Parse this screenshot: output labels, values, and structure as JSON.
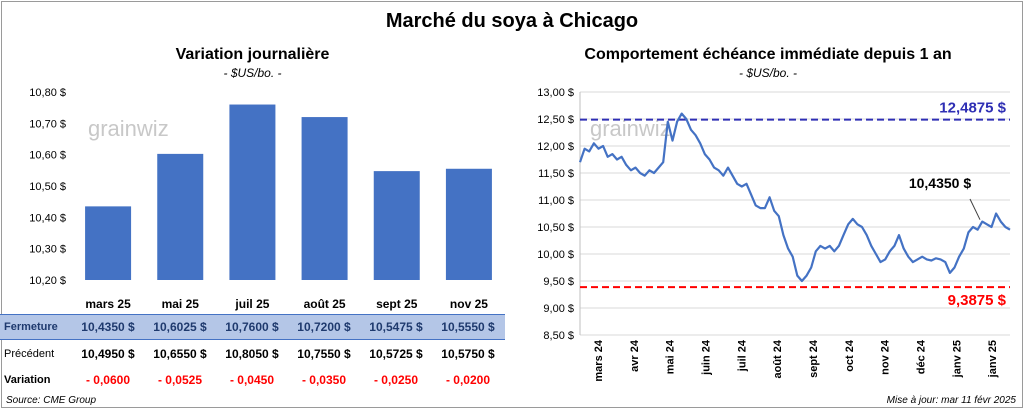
{
  "title": "Marché du soya à Chicago",
  "left": {
    "title": "Variation journalière",
    "subtitle": "- $US/bo. -",
    "watermark": "grainwiz",
    "chart_data": {
      "type": "bar",
      "categories": [
        "mars 25",
        "mai 25",
        "juil 25",
        "août 25",
        "sept 25",
        "nov 25"
      ],
      "values": [
        10.435,
        10.6025,
        10.76,
        10.72,
        10.5475,
        10.555
      ],
      "ylim": [
        10.2,
        10.8
      ],
      "yticks": [
        "10,20 $",
        "10,30 $",
        "10,40 $",
        "10,50 $",
        "10,60 $",
        "10,70 $",
        "10,80 $"
      ],
      "bar_color": "#4472c4",
      "grid": false
    }
  },
  "table": {
    "rows": [
      {
        "label": "Fermeture",
        "values": [
          "10,4350 $",
          "10,6025 $",
          "10,7600 $",
          "10,7200 $",
          "10,5475 $",
          "10,5550 $"
        ]
      },
      {
        "label": "Précédent",
        "values": [
          "10,4950 $",
          "10,6550 $",
          "10,8050 $",
          "10,7550 $",
          "10,5725 $",
          "10,5750 $"
        ]
      },
      {
        "label": "Variation",
        "values": [
          "- 0,0600",
          "- 0,0525",
          "- 0,0450",
          "- 0,0350",
          "- 0,0250",
          "- 0,0200"
        ]
      }
    ]
  },
  "right": {
    "title": "Comportement échéance immédiate depuis 1 an",
    "subtitle": "- $US/bo. -",
    "watermark": "grainwiz",
    "chart_data": {
      "type": "line",
      "ylim": [
        8.5,
        13.0
      ],
      "yticks": [
        "8,50 $",
        "9,00 $",
        "9,50 $",
        "10,00 $",
        "10,50 $",
        "11,00 $",
        "11,50 $",
        "12,00 $",
        "12,50 $",
        "13,00 $"
      ],
      "xticks": [
        "mars 24",
        "avr 24",
        "mai 24",
        "juin 24",
        "juil 24",
        "août 24",
        "sept 24",
        "oct 24",
        "nov 24",
        "déc 24",
        "janv 25",
        "janv 25"
      ],
      "series": [
        {
          "color": "#4472c4",
          "values": [
            11.7,
            11.95,
            11.9,
            12.05,
            11.95,
            12.0,
            11.8,
            11.85,
            11.75,
            11.8,
            11.65,
            11.55,
            11.6,
            11.5,
            11.45,
            11.55,
            11.5,
            11.6,
            11.7,
            12.45,
            12.1,
            12.45,
            12.6,
            12.5,
            12.3,
            12.2,
            12.05,
            11.85,
            11.75,
            11.6,
            11.55,
            11.45,
            11.6,
            11.45,
            11.3,
            11.25,
            11.3,
            11.1,
            10.9,
            10.85,
            10.85,
            11.05,
            10.8,
            10.7,
            10.35,
            10.1,
            9.95,
            9.6,
            9.5,
            9.6,
            9.75,
            10.05,
            10.15,
            10.1,
            10.15,
            10.05,
            10.15,
            10.35,
            10.55,
            10.65,
            10.55,
            10.5,
            10.35,
            10.15,
            10.0,
            9.85,
            9.9,
            10.05,
            10.15,
            10.35,
            10.1,
            9.95,
            9.85,
            9.9,
            9.95,
            9.9,
            9.88,
            9.92,
            9.9,
            9.85,
            9.65,
            9.75,
            9.95,
            10.1,
            10.4,
            10.5,
            10.45,
            10.6,
            10.55,
            10.5,
            10.75,
            10.6,
            10.5,
            10.45
          ]
        }
      ],
      "reference_lines": [
        {
          "value": 12.4875,
          "label": "12,4875 $",
          "color": "#2f2fb4"
        },
        {
          "value": 9.3875,
          "label": "9,3875 $",
          "color": "#ff0000"
        }
      ],
      "annotation": {
        "label": "10,4350 $"
      }
    }
  },
  "footer": {
    "source": "Source: CME Group",
    "updated": "Mise à jour: mar 11 févr 2025"
  }
}
